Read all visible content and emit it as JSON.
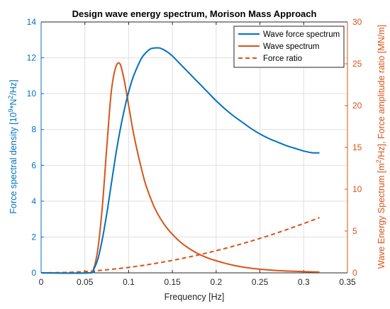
{
  "chart_data": {
    "type": "line",
    "title": "Design wave energy spectrum, Morison Mass Approach",
    "xlabel": "Frequency [Hz]",
    "ylabel_left": "Force spectral density [10^9*N^2/Hz]",
    "ylabel_right": "Wave Energy Spectrum [m^2/Hz], Force amplitude ratio [MN/m]",
    "xlim": [
      0,
      0.35
    ],
    "ylim_left": [
      0,
      14
    ],
    "ylim_right": [
      0,
      30
    ],
    "xticks": [
      "0",
      "0.05",
      "0.1",
      "0.15",
      "0.2",
      "0.25",
      "0.3",
      "0.35"
    ],
    "yticks_left": [
      "0",
      "2",
      "4",
      "6",
      "8",
      "10",
      "12",
      "14"
    ],
    "yticks_right": [
      "0",
      "5",
      "10",
      "15",
      "20",
      "25",
      "30"
    ],
    "grid": "on",
    "legend_position": "top-right",
    "colors": {
      "blue": "#0072BD",
      "orange": "#D95319"
    },
    "series": [
      {
        "name": "Wave force spectrum",
        "axis": "left",
        "style": "solid",
        "color": "#0072BD",
        "x": [
          0.0,
          0.055,
          0.06,
          0.065,
          0.07,
          0.075,
          0.08,
          0.085,
          0.09,
          0.095,
          0.1,
          0.105,
          0.11,
          0.115,
          0.12,
          0.125,
          0.13,
          0.135,
          0.14,
          0.145,
          0.15,
          0.16,
          0.17,
          0.18,
          0.19,
          0.2,
          0.21,
          0.22,
          0.23,
          0.24,
          0.25,
          0.26,
          0.27,
          0.28,
          0.29,
          0.3,
          0.31,
          0.318
        ],
        "y": [
          0.0,
          0.0,
          0.2,
          0.8,
          1.9,
          3.3,
          4.9,
          6.5,
          7.9,
          9.1,
          10.1,
          10.9,
          11.5,
          12.0,
          12.3,
          12.5,
          12.55,
          12.55,
          12.45,
          12.3,
          12.1,
          11.6,
          11.1,
          10.6,
          10.1,
          9.6,
          9.15,
          8.75,
          8.4,
          8.05,
          7.75,
          7.5,
          7.3,
          7.1,
          6.95,
          6.8,
          6.7,
          6.7
        ]
      },
      {
        "name": "Wave spectrum",
        "axis": "right",
        "style": "solid",
        "color": "#D95319",
        "x": [
          0.0,
          0.055,
          0.06,
          0.065,
          0.07,
          0.075,
          0.08,
          0.085,
          0.09,
          0.095,
          0.1,
          0.105,
          0.11,
          0.115,
          0.12,
          0.13,
          0.14,
          0.15,
          0.16,
          0.17,
          0.18,
          0.19,
          0.2,
          0.21,
          0.22,
          0.23,
          0.24,
          0.25,
          0.26,
          0.27,
          0.28,
          0.3,
          0.318
        ],
        "y": [
          0.0,
          0.0,
          0.5,
          3.0,
          8.0,
          15.0,
          21.5,
          24.5,
          25.0,
          23.0,
          20.0,
          17.0,
          14.5,
          12.3,
          10.4,
          7.7,
          5.9,
          4.6,
          3.6,
          2.85,
          2.25,
          1.8,
          1.45,
          1.15,
          0.9,
          0.7,
          0.55,
          0.43,
          0.35,
          0.28,
          0.22,
          0.15,
          0.1
        ]
      },
      {
        "name": "Force ratio",
        "axis": "right",
        "style": "dashed",
        "color": "#D95319",
        "x": [
          0.0,
          0.02,
          0.04,
          0.06,
          0.08,
          0.1,
          0.12,
          0.14,
          0.16,
          0.18,
          0.2,
          0.22,
          0.24,
          0.26,
          0.28,
          0.3,
          0.318
        ],
        "y": [
          0.0,
          0.03,
          0.1,
          0.23,
          0.42,
          0.65,
          0.95,
          1.3,
          1.7,
          2.15,
          2.65,
          3.2,
          3.8,
          4.45,
          5.15,
          5.9,
          6.6
        ]
      }
    ]
  }
}
